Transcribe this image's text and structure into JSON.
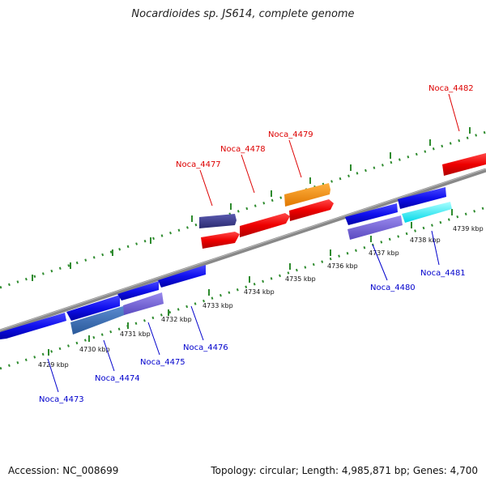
{
  "title": "Nocardioides sp. JS614, complete genome",
  "footer": {
    "accession": "Accession: NC_008699",
    "summary": "Topology: circular; Length: 4,985,871 bp; Genes: 4,700"
  },
  "colors": {
    "backbone": "#888888",
    "ticks": "#2e8b2e",
    "label_top": "#dd0000",
    "label_bottom": "#0000cc"
  },
  "scale_labels": [
    "4729 kbp",
    "4730 kbp",
    "4731 kbp",
    "4732 kbp",
    "4733 kbp",
    "4734 kbp",
    "4735 kbp",
    "4736 kbp",
    "4737 kbp",
    "4738 kbp",
    "4739 kbp"
  ],
  "genes_top": [
    {
      "label": "Noca_4477",
      "color": "#dd0000"
    },
    {
      "label": "Noca_4478",
      "color": "#dd0000"
    },
    {
      "label": "Noca_4479",
      "color": "#dd0000"
    },
    {
      "label": "Noca_4482",
      "color": "#dd0000"
    }
  ],
  "genes_bottom": [
    {
      "label": "Noca_4473",
      "color": "#0000cc"
    },
    {
      "label": "Noca_4474",
      "color": "#0000cc"
    },
    {
      "label": "Noca_4475",
      "color": "#0000cc"
    },
    {
      "label": "Noca_4476",
      "color": "#0000cc"
    },
    {
      "label": "Noca_4480",
      "color": "#0000cc"
    },
    {
      "label": "Noca_4481",
      "color": "#0000cc"
    }
  ]
}
